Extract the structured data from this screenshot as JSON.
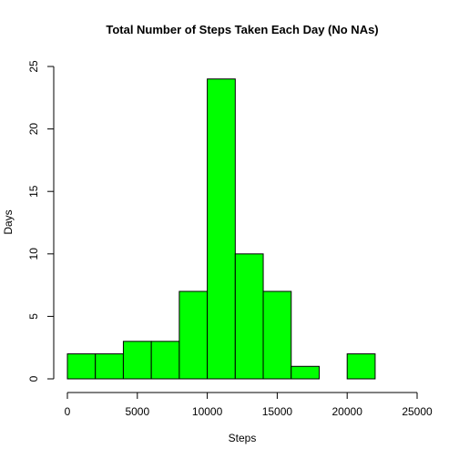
{
  "chart_data": {
    "type": "bar",
    "title": "Total Number of Steps Taken Each Day (No NAs)",
    "xlabel": "Steps",
    "ylabel": "Days",
    "bin_edges": [
      0,
      2000,
      4000,
      6000,
      8000,
      10000,
      12000,
      14000,
      16000,
      18000,
      20000,
      22000
    ],
    "values": [
      2,
      2,
      3,
      3,
      7,
      24,
      10,
      7,
      1,
      0,
      2
    ],
    "xlim": [
      0,
      25000
    ],
    "ylim": [
      0,
      25
    ],
    "xticks": [
      0,
      5000,
      10000,
      15000,
      20000,
      25000
    ],
    "yticks": [
      0,
      5,
      10,
      15,
      20,
      25
    ],
    "bar_color": "#00ff00",
    "bar_border_color": "#000000",
    "grid": false
  }
}
